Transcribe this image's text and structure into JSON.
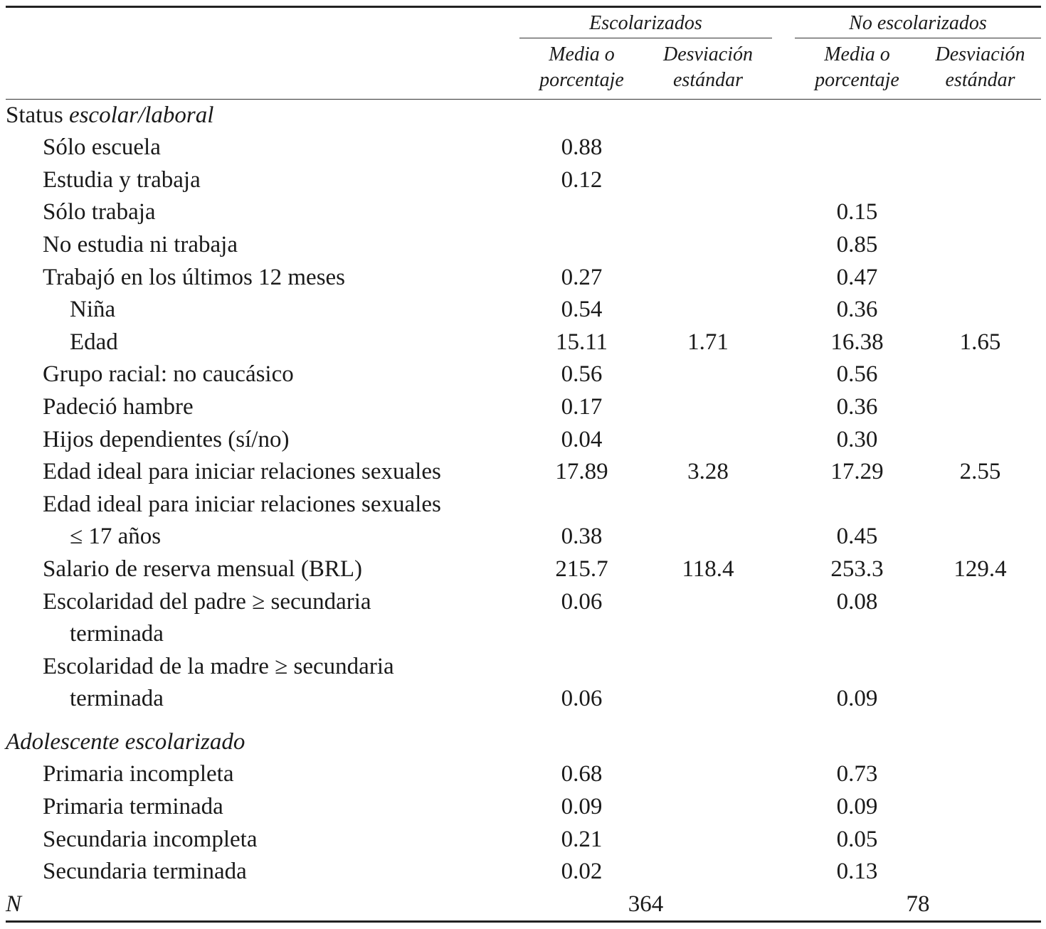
{
  "table": {
    "header": {
      "groups": [
        "Escolarizados",
        "No escolarizados"
      ],
      "columns": [
        [
          "Media o",
          "porcentaje"
        ],
        [
          "Desviación",
          "estándar"
        ],
        [
          "Media o",
          "porcentaje"
        ],
        [
          "Desviación",
          "estándar"
        ]
      ]
    },
    "sections": [
      {
        "title": "Status",
        "title_italic": "escolar/laboral",
        "rows": [
          {
            "label": "Sólo escuela",
            "cells": [
              "0.88",
              null,
              null,
              null
            ]
          },
          {
            "label": "Estudia y trabaja",
            "cells": [
              "0.12",
              null,
              null,
              null
            ]
          },
          {
            "label": "Sólo trabaja",
            "cells": [
              null,
              null,
              "0.15",
              null
            ]
          },
          {
            "label": "No estudia ni trabaja",
            "cells": [
              null,
              null,
              "0.85",
              null
            ]
          },
          {
            "label": "Trabajó en los últimos 12 meses",
            "cells": [
              "0.27",
              null,
              "0.47",
              null
            ],
            "children": [
              {
                "label": "Niña",
                "cells": [
                  "0.54",
                  null,
                  "0.36",
                  null
                ]
              },
              {
                "label": "Edad",
                "cells": [
                  "15.11",
                  "1.71",
                  "16.38",
                  "1.65"
                ]
              }
            ]
          },
          {
            "label": "Grupo racial: no caucásico",
            "cells": [
              "0.56",
              null,
              "0.56",
              null
            ]
          },
          {
            "label": "Padeció hambre",
            "cells": [
              "0.17",
              null,
              "0.36",
              null
            ]
          },
          {
            "label": "Hijos dependientes (sí/no)",
            "cells": [
              "0.04",
              null,
              "0.30",
              null
            ]
          },
          {
            "label": "Edad ideal para iniciar relaciones sexuales",
            "cells": [
              "17.89",
              "3.28",
              "17.29",
              "2.55"
            ]
          },
          {
            "label": "Edad ideal para iniciar relaciones sexuales",
            "cells": [
              null,
              null,
              null,
              null
            ],
            "children": [
              {
                "label": "≤ 17 años",
                "cells": [
                  "0.38",
                  null,
                  "0.45",
                  null
                ]
              }
            ]
          },
          {
            "label": "Salario de reserva mensual (BRL)",
            "cells": [
              "215.7",
              "118.4",
              "253.3",
              "129.4"
            ]
          },
          {
            "label": "Escolaridad del padre ≥ secundaria",
            "cells": [
              "0.06",
              null,
              "0.08",
              null
            ],
            "children": [
              {
                "label": "terminada",
                "cells": [
                  null,
                  null,
                  null,
                  null
                ]
              }
            ]
          },
          {
            "label": "Escolaridad de la madre ≥ secundaria",
            "cells": [
              null,
              null,
              null,
              null
            ],
            "children": [
              {
                "label": "terminada",
                "cells": [
                  "0.06",
                  null,
                  "0.09",
                  null
                ]
              }
            ]
          }
        ]
      },
      {
        "title_italic": "Adolescente escolarizado",
        "rows": [
          {
            "label": "Primaria incompleta",
            "cells": [
              "0.68",
              null,
              "0.73",
              null
            ]
          },
          {
            "label": "Primaria terminada",
            "cells": [
              "0.09",
              null,
              "0.09",
              null
            ]
          },
          {
            "label": "Secundaria incompleta",
            "cells": [
              "0.21",
              null,
              "0.05",
              null
            ]
          },
          {
            "label": "Secundaria terminada",
            "cells": [
              "0.02",
              null,
              "0.13",
              null
            ]
          }
        ]
      }
    ],
    "total": {
      "label": "N",
      "values": [
        "364",
        "78"
      ]
    }
  }
}
